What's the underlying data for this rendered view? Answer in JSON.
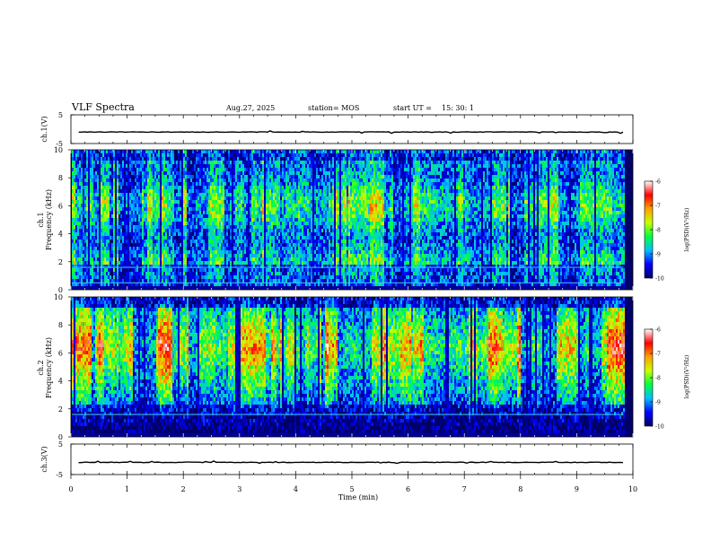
{
  "header": {
    "title": "VLF Spectra",
    "date": "Aug.27, 2025",
    "station": "station= MOS",
    "start_label": "start  UT  =",
    "start_time": "15: 30: 1"
  },
  "chart_data": [
    {
      "type": "line",
      "name": "ch1-voltage",
      "ylabel": "ch.1(V)",
      "ylim": [
        -5,
        5
      ],
      "yticks": [
        "5",
        "-5"
      ],
      "series": [
        {
          "name": "ch.1",
          "level": -1
        }
      ]
    },
    {
      "type": "heatmap",
      "name": "ch1-spectrogram",
      "ylabel": "Frequency (kHz)",
      "channel": "ch.1",
      "ylim": [
        0,
        10
      ],
      "yticks": [
        "0",
        "2",
        "4",
        "6",
        "8",
        "10"
      ],
      "colorbar": {
        "label": "log(PSD)(V²/Hz)",
        "range": [
          -10,
          -6
        ],
        "ticks": [
          "-6",
          "-7",
          "-8",
          "-9",
          "-10"
        ],
        "stops": [
          "#000066",
          "#0000ff",
          "#00bfff",
          "#00ff40",
          "#c8ff00",
          "#ffa000",
          "#ff0000",
          "#ffffff"
        ]
      },
      "bands": [
        0.5,
        1.6
      ]
    },
    {
      "type": "heatmap",
      "name": "ch2-spectrogram",
      "ylabel": "Frequency (kHz)",
      "channel": "ch.2",
      "ylim": [
        0,
        10
      ],
      "yticks": [
        "0",
        "2",
        "4",
        "6",
        "8",
        "10"
      ],
      "colorbar": {
        "label": "log(PSD)(V²/Hz)",
        "range": [
          -10,
          -6
        ],
        "ticks": [
          "-6",
          "-7",
          "-8",
          "-9",
          "-10"
        ],
        "stops": [
          "#000066",
          "#0000ff",
          "#00bfff",
          "#00ff40",
          "#c8ff00",
          "#ffa000",
          "#ff0000",
          "#ffffff"
        ]
      },
      "bands": [
        1.6
      ]
    },
    {
      "type": "line",
      "name": "ch3-voltage",
      "ylabel": "ch.3(V)",
      "ylim": [
        -5,
        5
      ],
      "yticks": [
        "5",
        "-5"
      ],
      "series": [
        {
          "name": "ch.3",
          "level": -1
        }
      ]
    }
  ],
  "xaxis": {
    "label": "Time  (min)",
    "range": [
      0,
      10
    ],
    "ticks": [
      "0",
      "1",
      "2",
      "3",
      "4",
      "5",
      "6",
      "7",
      "8",
      "9",
      "10"
    ],
    "data_end": 9.83
  }
}
